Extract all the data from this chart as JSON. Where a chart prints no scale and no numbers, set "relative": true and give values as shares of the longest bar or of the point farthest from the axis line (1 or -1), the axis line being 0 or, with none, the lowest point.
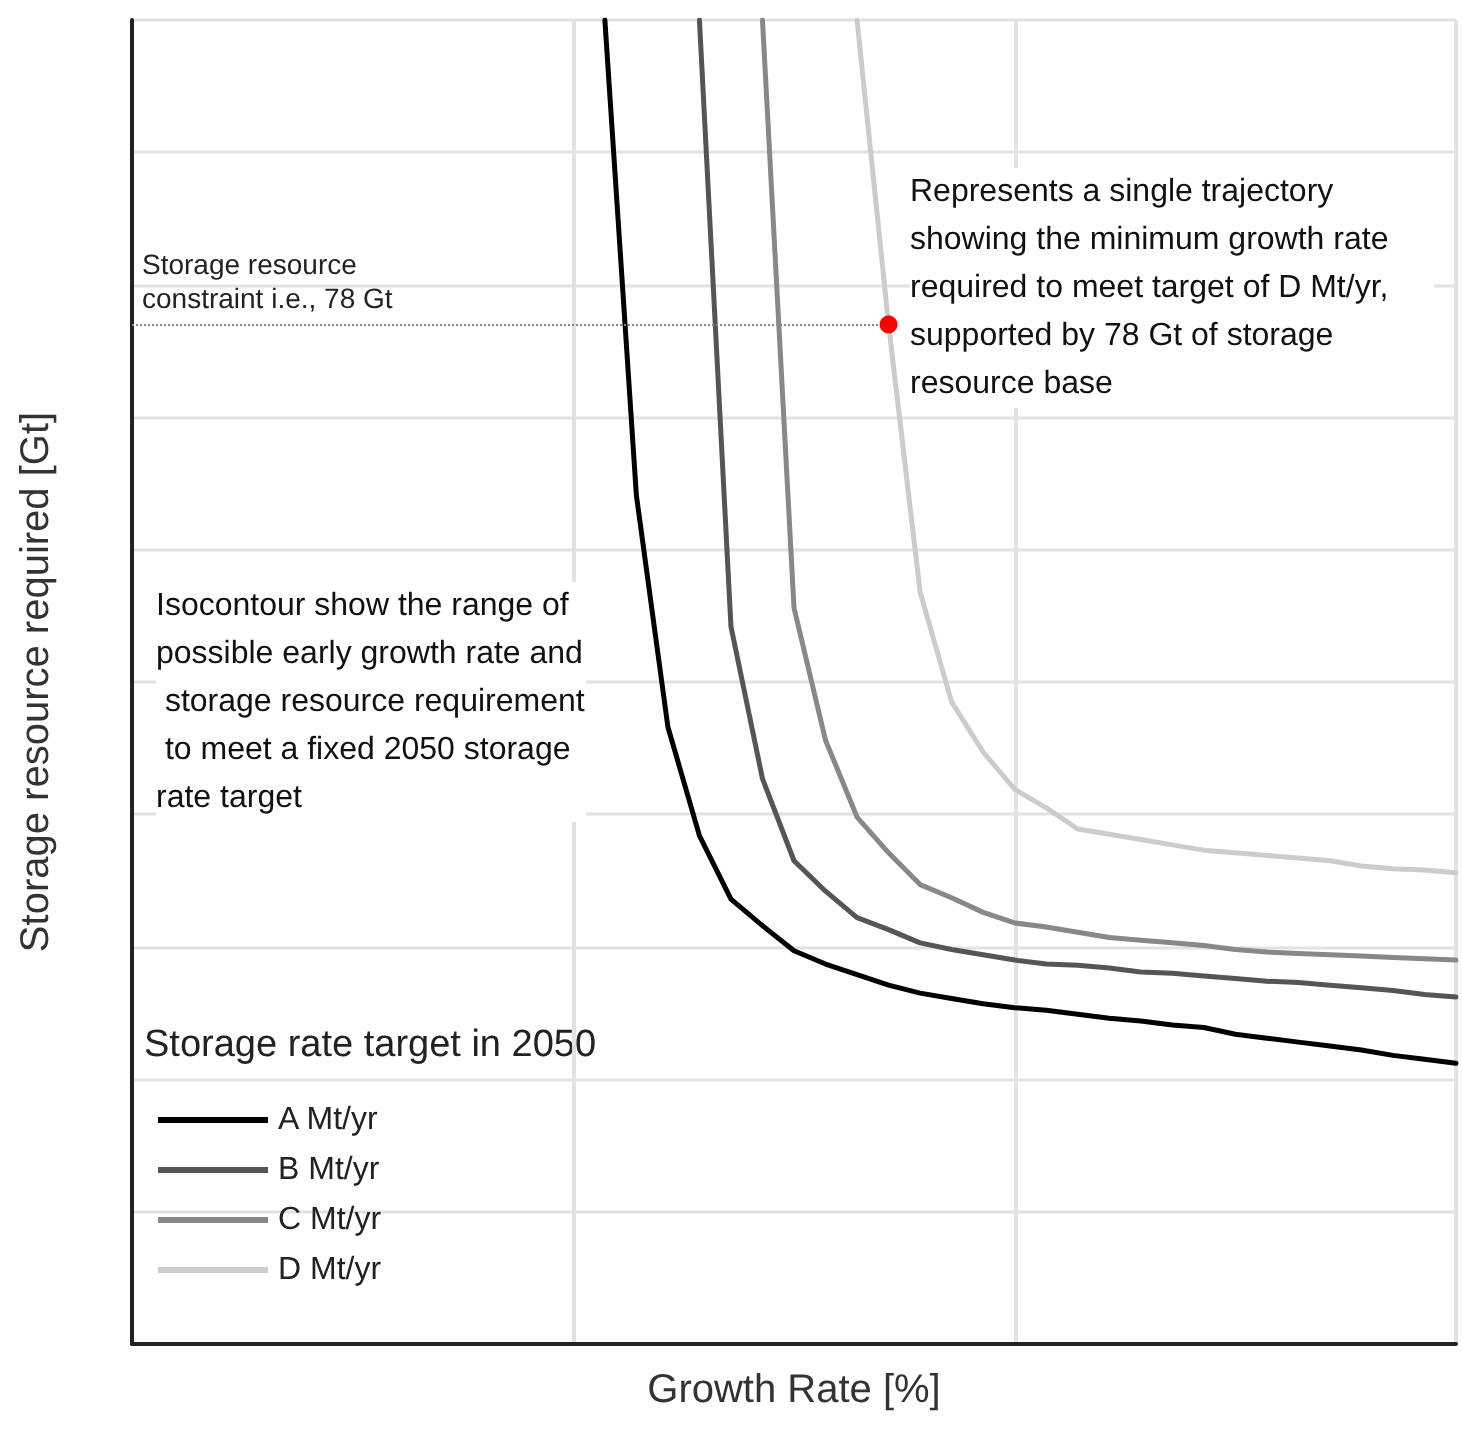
{
  "chart_data": {
    "type": "line",
    "relative": true,
    "xlabel": "Growth Rate [%]",
    "ylabel": "Storage resource required [Gt]",
    "legend_title": "Storage rate target in 2050",
    "legend": "bottom left",
    "grid": true,
    "marker": "none",
    "line_style": "solid",
    "categories": [
      null,
      null,
      null,
      null,
      null,
      null,
      null,
      null,
      null,
      null,
      null,
      null,
      null,
      null,
      null,
      null,
      null,
      null,
      null,
      null,
      null,
      null,
      null,
      null,
      null,
      null,
      null,
      null,
      null,
      null,
      null,
      null,
      null,
      null,
      null,
      null,
      null,
      null,
      null,
      null,
      null,
      null,
      null
    ],
    "series": [
      {
        "name": "A Mt/yr",
        "color": "#000000",
        "values": [
          null,
          null,
          null,
          null,
          null,
          null,
          null,
          null,
          null,
          null,
          null,
          null,
          null,
          null,
          null,
          1.0,
          0.641,
          0.466,
          0.384,
          0.336,
          0.316,
          0.297,
          0.287,
          0.279,
          0.271,
          0.265,
          0.261,
          0.257,
          0.254,
          0.252,
          0.249,
          0.246,
          0.244,
          0.241,
          0.239,
          0.234,
          0.231,
          0.228,
          0.225,
          0.222,
          0.218,
          0.215,
          0.212
        ]
      },
      {
        "name": "B Mt/yr",
        "color": "#555555",
        "values": [
          null,
          null,
          null,
          null,
          null,
          null,
          null,
          null,
          null,
          null,
          null,
          null,
          null,
          null,
          null,
          null,
          null,
          null,
          1.0,
          0.542,
          0.427,
          0.365,
          0.342,
          0.322,
          0.313,
          0.303,
          0.298,
          0.294,
          0.29,
          0.287,
          0.286,
          0.284,
          0.281,
          0.28,
          0.278,
          0.276,
          0.274,
          0.273,
          0.271,
          0.269,
          0.267,
          0.264,
          0.262
        ]
      },
      {
        "name": "C Mt/yr",
        "color": "#888888",
        "values": [
          null,
          null,
          null,
          null,
          null,
          null,
          null,
          null,
          null,
          null,
          null,
          null,
          null,
          null,
          null,
          null,
          null,
          null,
          null,
          null,
          1.0,
          0.556,
          0.456,
          0.398,
          0.371,
          0.347,
          0.337,
          0.326,
          0.318,
          0.315,
          0.311,
          0.307,
          0.305,
          0.303,
          0.301,
          0.298,
          0.296,
          0.295,
          0.294,
          0.293,
          0.292,
          0.291,
          0.29
        ]
      },
      {
        "name": "D Mt/yr",
        "color": "#cccccc",
        "values": [
          null,
          null,
          null,
          null,
          null,
          null,
          null,
          null,
          null,
          null,
          null,
          null,
          null,
          null,
          null,
          null,
          null,
          null,
          null,
          null,
          null,
          null,
          null,
          1.0,
          0.77,
          0.568,
          0.485,
          0.447,
          0.419,
          0.405,
          0.389,
          0.385,
          0.381,
          0.377,
          0.373,
          0.371,
          0.369,
          0.367,
          0.365,
          0.361,
          0.359,
          0.358,
          0.356
        ]
      },
      {
        "type": "line",
        "marker": "circle",
        "color": "#ff0000",
        "values": [
          null,
          null,
          null,
          null,
          null,
          null,
          null,
          null,
          null,
          null,
          null,
          null,
          null,
          null,
          null,
          null,
          null,
          null,
          null,
          null,
          null,
          null,
          null,
          null,
          0.77,
          null,
          null,
          null,
          null,
          null,
          null,
          null,
          null,
          null,
          null,
          null,
          null,
          null,
          null,
          null,
          null,
          null,
          null
        ]
      }
    ],
    "ref_lines": [
      {
        "axis": "y",
        "value": 0.77,
        "label": "Storage resource constraint i.e., 78 Gt",
        "color": "#888888",
        "line_style": "dotted"
      }
    ],
    "annotations": [
      "Represents a single trajectory showing the minimum growth rate required to meet target of D Mt/yr, supported by 78 Gt of storage resource base",
      "Isocontour show the range of possible early growth rate and storage resource requirement to meet a fixed 2050 storage rate target"
    ]
  }
}
